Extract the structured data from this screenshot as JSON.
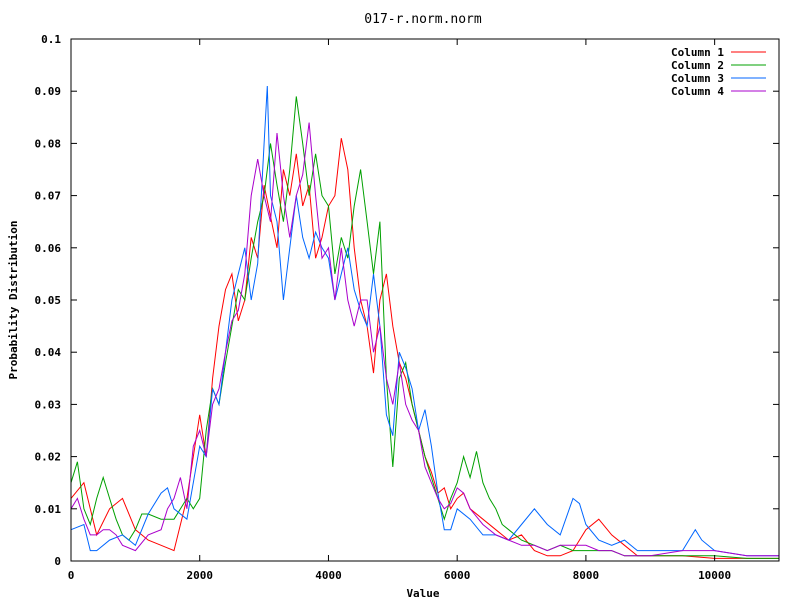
{
  "chart_data": {
    "type": "line",
    "title": "017-r.norm.norm",
    "xlabel": "Value",
    "ylabel": "Probability Distribution",
    "xlim": [
      0,
      11000
    ],
    "ylim": [
      0,
      0.1
    ],
    "x_ticks": [
      "0",
      "2000",
      "4000",
      "6000",
      "8000",
      "10000"
    ],
    "x_tick_values": [
      0,
      2000,
      4000,
      6000,
      8000,
      10000
    ],
    "y_ticks": [
      "0",
      "0.01",
      "0.02",
      "0.03",
      "0.04",
      "0.05",
      "0.06",
      "0.07",
      "0.08",
      "0.09",
      "0.1"
    ],
    "y_tick_values": [
      0,
      0.01,
      0.02,
      0.03,
      0.04,
      0.05,
      0.06,
      0.07,
      0.08,
      0.09,
      0.1
    ],
    "grid": false,
    "legend_position": "top-right",
    "series": [
      {
        "name": "Column 1",
        "color": "#ff0000",
        "points": [
          [
            0,
            0.012
          ],
          [
            200,
            0.015
          ],
          [
            400,
            0.005
          ],
          [
            600,
            0.01
          ],
          [
            800,
            0.012
          ],
          [
            1000,
            0.006
          ],
          [
            1200,
            0.004
          ],
          [
            1400,
            0.003
          ],
          [
            1600,
            0.002
          ],
          [
            1800,
            0.012
          ],
          [
            2000,
            0.028
          ],
          [
            2100,
            0.02
          ],
          [
            2200,
            0.035
          ],
          [
            2300,
            0.045
          ],
          [
            2400,
            0.052
          ],
          [
            2500,
            0.055
          ],
          [
            2600,
            0.046
          ],
          [
            2700,
            0.05
          ],
          [
            2800,
            0.062
          ],
          [
            2900,
            0.058
          ],
          [
            3000,
            0.072
          ],
          [
            3100,
            0.066
          ],
          [
            3200,
            0.06
          ],
          [
            3300,
            0.075
          ],
          [
            3400,
            0.07
          ],
          [
            3500,
            0.078
          ],
          [
            3600,
            0.068
          ],
          [
            3700,
            0.072
          ],
          [
            3800,
            0.058
          ],
          [
            3900,
            0.062
          ],
          [
            4000,
            0.068
          ],
          [
            4100,
            0.07
          ],
          [
            4200,
            0.081
          ],
          [
            4300,
            0.075
          ],
          [
            4400,
            0.06
          ],
          [
            4500,
            0.05
          ],
          [
            4600,
            0.045
          ],
          [
            4700,
            0.036
          ],
          [
            4800,
            0.05
          ],
          [
            4900,
            0.055
          ],
          [
            5000,
            0.045
          ],
          [
            5100,
            0.038
          ],
          [
            5200,
            0.035
          ],
          [
            5300,
            0.03
          ],
          [
            5400,
            0.025
          ],
          [
            5500,
            0.02
          ],
          [
            5600,
            0.017
          ],
          [
            5700,
            0.013
          ],
          [
            5800,
            0.014
          ],
          [
            5900,
            0.01
          ],
          [
            6000,
            0.012
          ],
          [
            6100,
            0.013
          ],
          [
            6200,
            0.01
          ],
          [
            6400,
            0.008
          ],
          [
            6600,
            0.006
          ],
          [
            6800,
            0.004
          ],
          [
            7000,
            0.005
          ],
          [
            7200,
            0.002
          ],
          [
            7400,
            0.001
          ],
          [
            7600,
            0.001
          ],
          [
            7800,
            0.002
          ],
          [
            8000,
            0.006
          ],
          [
            8200,
            0.008
          ],
          [
            8400,
            0.005
          ],
          [
            8600,
            0.003
          ],
          [
            8800,
            0.001
          ],
          [
            9000,
            0.001
          ],
          [
            9500,
            0.001
          ],
          [
            10000,
            0.0005
          ],
          [
            10500,
            0.0005
          ],
          [
            11000,
            0.0005
          ]
        ]
      },
      {
        "name": "Column 2",
        "color": "#00a000",
        "points": [
          [
            0,
            0.015
          ],
          [
            100,
            0.019
          ],
          [
            200,
            0.01
          ],
          [
            300,
            0.007
          ],
          [
            400,
            0.012
          ],
          [
            500,
            0.016
          ],
          [
            600,
            0.012
          ],
          [
            700,
            0.008
          ],
          [
            800,
            0.005
          ],
          [
            900,
            0.004
          ],
          [
            1000,
            0.006
          ],
          [
            1100,
            0.009
          ],
          [
            1200,
            0.009
          ],
          [
            1400,
            0.008
          ],
          [
            1600,
            0.008
          ],
          [
            1800,
            0.012
          ],
          [
            1900,
            0.01
          ],
          [
            2000,
            0.012
          ],
          [
            2100,
            0.025
          ],
          [
            2200,
            0.033
          ],
          [
            2300,
            0.03
          ],
          [
            2400,
            0.038
          ],
          [
            2500,
            0.045
          ],
          [
            2600,
            0.052
          ],
          [
            2700,
            0.05
          ],
          [
            2800,
            0.058
          ],
          [
            2900,
            0.065
          ],
          [
            3000,
            0.07
          ],
          [
            3100,
            0.08
          ],
          [
            3200,
            0.072
          ],
          [
            3300,
            0.065
          ],
          [
            3400,
            0.075
          ],
          [
            3500,
            0.089
          ],
          [
            3600,
            0.08
          ],
          [
            3700,
            0.07
          ],
          [
            3800,
            0.078
          ],
          [
            3900,
            0.07
          ],
          [
            4000,
            0.068
          ],
          [
            4100,
            0.055
          ],
          [
            4200,
            0.062
          ],
          [
            4300,
            0.058
          ],
          [
            4400,
            0.068
          ],
          [
            4500,
            0.075
          ],
          [
            4600,
            0.065
          ],
          [
            4700,
            0.055
          ],
          [
            4800,
            0.065
          ],
          [
            4900,
            0.035
          ],
          [
            5000,
            0.018
          ],
          [
            5100,
            0.035
          ],
          [
            5200,
            0.038
          ],
          [
            5300,
            0.03
          ],
          [
            5400,
            0.025
          ],
          [
            5500,
            0.02
          ],
          [
            5600,
            0.016
          ],
          [
            5700,
            0.012
          ],
          [
            5800,
            0.008
          ],
          [
            5900,
            0.012
          ],
          [
            6000,
            0.015
          ],
          [
            6100,
            0.02
          ],
          [
            6200,
            0.016
          ],
          [
            6300,
            0.021
          ],
          [
            6400,
            0.015
          ],
          [
            6500,
            0.012
          ],
          [
            6600,
            0.01
          ],
          [
            6700,
            0.007
          ],
          [
            6800,
            0.006
          ],
          [
            7000,
            0.004
          ],
          [
            7200,
            0.003
          ],
          [
            7400,
            0.002
          ],
          [
            7600,
            0.003
          ],
          [
            7800,
            0.002
          ],
          [
            8000,
            0.002
          ],
          [
            8200,
            0.002
          ],
          [
            8400,
            0.002
          ],
          [
            8600,
            0.001
          ],
          [
            8800,
            0.001
          ],
          [
            9000,
            0.001
          ],
          [
            9500,
            0.001
          ],
          [
            10000,
            0.001
          ],
          [
            10500,
            0.0005
          ],
          [
            11000,
            0.0005
          ]
        ]
      },
      {
        "name": "Column 3",
        "color": "#0066ff",
        "points": [
          [
            0,
            0.006
          ],
          [
            200,
            0.007
          ],
          [
            300,
            0.002
          ],
          [
            400,
            0.002
          ],
          [
            600,
            0.004
          ],
          [
            800,
            0.005
          ],
          [
            1000,
            0.003
          ],
          [
            1200,
            0.009
          ],
          [
            1400,
            0.013
          ],
          [
            1500,
            0.014
          ],
          [
            1600,
            0.01
          ],
          [
            1800,
            0.008
          ],
          [
            2000,
            0.022
          ],
          [
            2100,
            0.02
          ],
          [
            2200,
            0.033
          ],
          [
            2300,
            0.03
          ],
          [
            2400,
            0.04
          ],
          [
            2500,
            0.05
          ],
          [
            2600,
            0.055
          ],
          [
            2700,
            0.06
          ],
          [
            2800,
            0.05
          ],
          [
            2900,
            0.057
          ],
          [
            3000,
            0.08
          ],
          [
            3050,
            0.091
          ],
          [
            3100,
            0.07
          ],
          [
            3200,
            0.065
          ],
          [
            3300,
            0.05
          ],
          [
            3400,
            0.06
          ],
          [
            3500,
            0.07
          ],
          [
            3600,
            0.062
          ],
          [
            3700,
            0.058
          ],
          [
            3800,
            0.063
          ],
          [
            3900,
            0.06
          ],
          [
            4000,
            0.058
          ],
          [
            4100,
            0.05
          ],
          [
            4200,
            0.055
          ],
          [
            4300,
            0.06
          ],
          [
            4400,
            0.052
          ],
          [
            4500,
            0.048
          ],
          [
            4600,
            0.045
          ],
          [
            4700,
            0.055
          ],
          [
            4800,
            0.045
          ],
          [
            4900,
            0.028
          ],
          [
            5000,
            0.024
          ],
          [
            5100,
            0.04
          ],
          [
            5200,
            0.037
          ],
          [
            5300,
            0.033
          ],
          [
            5400,
            0.025
          ],
          [
            5500,
            0.029
          ],
          [
            5600,
            0.022
          ],
          [
            5700,
            0.013
          ],
          [
            5800,
            0.006
          ],
          [
            5900,
            0.006
          ],
          [
            6000,
            0.01
          ],
          [
            6200,
            0.008
          ],
          [
            6400,
            0.005
          ],
          [
            6600,
            0.005
          ],
          [
            6800,
            0.004
          ],
          [
            7000,
            0.007
          ],
          [
            7200,
            0.01
          ],
          [
            7400,
            0.007
          ],
          [
            7600,
            0.005
          ],
          [
            7800,
            0.012
          ],
          [
            7900,
            0.011
          ],
          [
            8000,
            0.007
          ],
          [
            8200,
            0.004
          ],
          [
            8400,
            0.003
          ],
          [
            8600,
            0.004
          ],
          [
            8800,
            0.002
          ],
          [
            9000,
            0.002
          ],
          [
            9500,
            0.002
          ],
          [
            9600,
            0.004
          ],
          [
            9700,
            0.006
          ],
          [
            9800,
            0.004
          ],
          [
            10000,
            0.002
          ],
          [
            10500,
            0.001
          ],
          [
            11000,
            0.001
          ]
        ]
      },
      {
        "name": "Column 4",
        "color": "#aa00cc",
        "points": [
          [
            0,
            0.01
          ],
          [
            100,
            0.012
          ],
          [
            200,
            0.008
          ],
          [
            300,
            0.005
          ],
          [
            400,
            0.005
          ],
          [
            500,
            0.006
          ],
          [
            600,
            0.006
          ],
          [
            700,
            0.005
          ],
          [
            800,
            0.003
          ],
          [
            1000,
            0.002
          ],
          [
            1200,
            0.005
          ],
          [
            1400,
            0.006
          ],
          [
            1500,
            0.01
          ],
          [
            1600,
            0.012
          ],
          [
            1700,
            0.016
          ],
          [
            1800,
            0.01
          ],
          [
            1900,
            0.022
          ],
          [
            2000,
            0.025
          ],
          [
            2100,
            0.02
          ],
          [
            2200,
            0.03
          ],
          [
            2300,
            0.033
          ],
          [
            2400,
            0.04
          ],
          [
            2500,
            0.046
          ],
          [
            2600,
            0.048
          ],
          [
            2700,
            0.055
          ],
          [
            2800,
            0.07
          ],
          [
            2900,
            0.077
          ],
          [
            3000,
            0.07
          ],
          [
            3100,
            0.065
          ],
          [
            3200,
            0.082
          ],
          [
            3300,
            0.07
          ],
          [
            3400,
            0.062
          ],
          [
            3500,
            0.07
          ],
          [
            3600,
            0.074
          ],
          [
            3700,
            0.084
          ],
          [
            3800,
            0.07
          ],
          [
            3900,
            0.058
          ],
          [
            4000,
            0.06
          ],
          [
            4100,
            0.05
          ],
          [
            4200,
            0.06
          ],
          [
            4300,
            0.05
          ],
          [
            4400,
            0.045
          ],
          [
            4500,
            0.05
          ],
          [
            4600,
            0.05
          ],
          [
            4700,
            0.04
          ],
          [
            4800,
            0.045
          ],
          [
            4900,
            0.035
          ],
          [
            5000,
            0.03
          ],
          [
            5100,
            0.038
          ],
          [
            5200,
            0.03
          ],
          [
            5300,
            0.027
          ],
          [
            5400,
            0.025
          ],
          [
            5500,
            0.018
          ],
          [
            5600,
            0.015
          ],
          [
            5700,
            0.012
          ],
          [
            5800,
            0.01
          ],
          [
            5900,
            0.011
          ],
          [
            6000,
            0.014
          ],
          [
            6100,
            0.013
          ],
          [
            6200,
            0.01
          ],
          [
            6400,
            0.007
          ],
          [
            6600,
            0.005
          ],
          [
            6800,
            0.004
          ],
          [
            7000,
            0.003
          ],
          [
            7200,
            0.003
          ],
          [
            7400,
            0.002
          ],
          [
            7600,
            0.003
          ],
          [
            7800,
            0.003
          ],
          [
            8000,
            0.003
          ],
          [
            8200,
            0.002
          ],
          [
            8400,
            0.002
          ],
          [
            8600,
            0.001
          ],
          [
            8800,
            0.001
          ],
          [
            9000,
            0.001
          ],
          [
            9500,
            0.002
          ],
          [
            10000,
            0.002
          ],
          [
            10500,
            0.001
          ],
          [
            11000,
            0.001
          ]
        ]
      }
    ]
  }
}
